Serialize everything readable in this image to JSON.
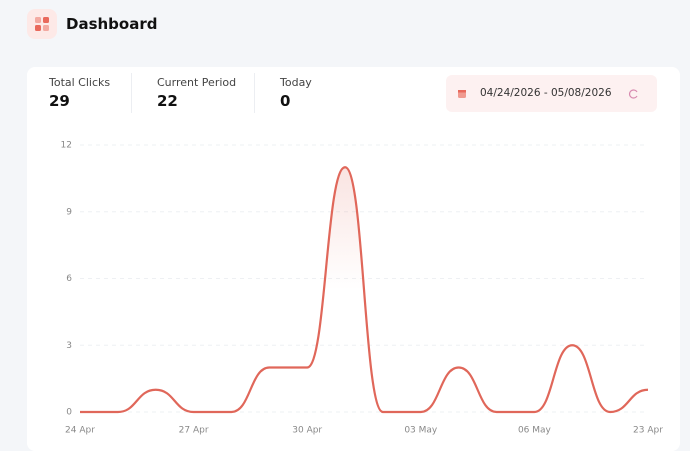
{
  "header": {
    "title": "Dashboard"
  },
  "stats": [
    {
      "label": "Total Clicks",
      "value": "29"
    },
    {
      "label": "Current Period",
      "value": "22"
    },
    {
      "label": "Today",
      "value": "0"
    }
  ],
  "date_range": "04/24/2026 - 05/08/2026",
  "chart_data": {
    "type": "line",
    "categories": [
      "24 Apr",
      null,
      null,
      "27 Apr",
      null,
      null,
      "30 Apr",
      null,
      null,
      "03 May",
      null,
      null,
      "06 May",
      null,
      null,
      "23 Apr"
    ],
    "values": [
      0,
      0,
      1,
      0,
      0,
      2,
      2,
      11,
      0,
      0,
      2,
      0,
      0,
      3,
      0,
      1
    ],
    "color": "#e0675a",
    "ylim": [
      0,
      12
    ],
    "yticks": [
      0,
      3,
      6,
      9,
      12
    ],
    "grid": true
  }
}
